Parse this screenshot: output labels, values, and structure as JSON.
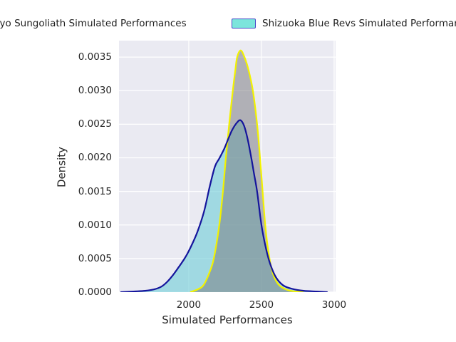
{
  "figure": {
    "background": "#ffffff",
    "plot_bg": "#eaeaf2",
    "grid_color": "#ffffff",
    "text_color": "#262626"
  },
  "legend": {
    "items": [
      {
        "label": "Tokyo Sungoliath Simulated Performances",
        "face": "#bcbcbf",
        "edge": "#e8e800"
      },
      {
        "label": "Shizuoka Blue Revs Simulated Performances",
        "face": "#7ce5dc",
        "edge": "#4646c6"
      }
    ]
  },
  "chart_data": {
    "type": "area",
    "subtype": "kde-density",
    "title": "",
    "xlabel": "Simulated Performances",
    "ylabel": "Density",
    "xlim": [
      1520,
      3010
    ],
    "ylim": [
      0,
      0.003745
    ],
    "xticks": [
      2000,
      2500,
      3000
    ],
    "xtick_labels": [
      "2000",
      "2500",
      "3000"
    ],
    "yticks": [
      0,
      0.0005,
      0.001,
      0.0015,
      0.002,
      0.0025,
      0.003,
      0.0035
    ],
    "ytick_labels": [
      "0.0000",
      "0.0005",
      "0.0010",
      "0.0015",
      "0.0020",
      "0.0025",
      "0.0030",
      "0.0035"
    ],
    "grid": true,
    "legend_position": "top",
    "series": [
      {
        "name": "Tokyo Sungoliath Simulated Performances",
        "line_color": "#f2f200",
        "fill_color": "rgba(117,117,122,0.5)",
        "peak": {
          "x": 2357,
          "density": 0.0036
        },
        "points": [
          [
            2010,
            0
          ],
          [
            2060,
            4e-05
          ],
          [
            2100,
            0.0001
          ],
          [
            2140,
            0.00028
          ],
          [
            2172,
            0.0005
          ],
          [
            2210,
            0.001
          ],
          [
            2235,
            0.0015
          ],
          [
            2255,
            0.002
          ],
          [
            2278,
            0.0025
          ],
          [
            2303,
            0.003
          ],
          [
            2320,
            0.0033
          ],
          [
            2333,
            0.0035
          ],
          [
            2357,
            0.0036
          ],
          [
            2383,
            0.0035
          ],
          [
            2412,
            0.0033
          ],
          [
            2441,
            0.003
          ],
          [
            2470,
            0.0025
          ],
          [
            2490,
            0.002
          ],
          [
            2508,
            0.0015
          ],
          [
            2526,
            0.001
          ],
          [
            2548,
            0.0006
          ],
          [
            2575,
            0.0003
          ],
          [
            2615,
            0.00012
          ],
          [
            2670,
            4e-05
          ],
          [
            2730,
            1e-05
          ],
          [
            2790,
            0
          ]
        ]
      },
      {
        "name": "Shizuoka Blue Revs Simulated Performances",
        "line_color": "#14149c",
        "fill_color": "rgba(110,205,215,0.6)",
        "peak": {
          "x": 2355,
          "density": 0.00256
        },
        "points": [
          [
            1530,
            0
          ],
          [
            1620,
            1e-05
          ],
          [
            1700,
            2e-05
          ],
          [
            1760,
            4e-05
          ],
          [
            1810,
            8e-05
          ],
          [
            1850,
            0.00015
          ],
          [
            1890,
            0.00025
          ],
          [
            1930,
            0.00037
          ],
          [
            1965,
            0.00048
          ],
          [
            1990,
            0.00057
          ],
          [
            2020,
            0.0007
          ],
          [
            2060,
            0.0009
          ],
          [
            2105,
            0.0012
          ],
          [
            2145,
            0.00158
          ],
          [
            2180,
            0.00187
          ],
          [
            2210,
            0.00199
          ],
          [
            2245,
            0.00214
          ],
          [
            2275,
            0.0023
          ],
          [
            2300,
            0.00242
          ],
          [
            2330,
            0.00252
          ],
          [
            2355,
            0.00256
          ],
          [
            2380,
            0.00248
          ],
          [
            2405,
            0.00228
          ],
          [
            2430,
            0.002
          ],
          [
            2450,
            0.00175
          ],
          [
            2470,
            0.0015
          ],
          [
            2500,
            0.001
          ],
          [
            2530,
            0.00066
          ],
          [
            2560,
            0.00042
          ],
          [
            2600,
            0.00022
          ],
          [
            2650,
            0.0001
          ],
          [
            2710,
            5e-05
          ],
          [
            2790,
            2e-05
          ],
          [
            2880,
            1e-05
          ],
          [
            2955,
            0
          ]
        ]
      }
    ]
  }
}
